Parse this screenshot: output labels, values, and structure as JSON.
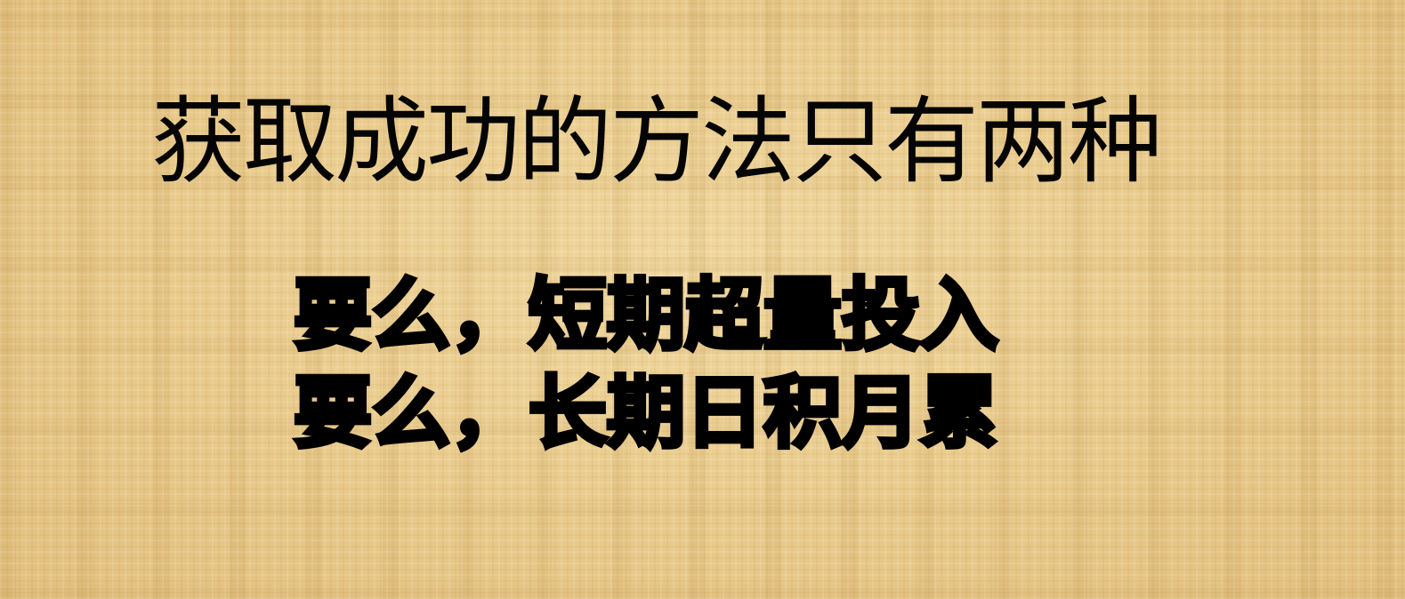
{
  "slide": {
    "headline": "获取成功的方法只有两种",
    "lines": [
      "要么，短期超量投入",
      "要么，长期日积月累"
    ],
    "colors": {
      "background": "#e8ca8c",
      "text": "#000000"
    }
  }
}
